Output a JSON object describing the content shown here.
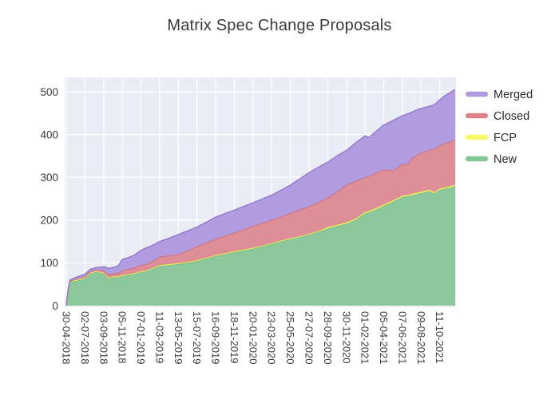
{
  "title": "Matrix Spec Change Proposals",
  "legend": {
    "position": "right",
    "items": [
      {
        "label": "Merged",
        "swatch": "#b09ae0"
      },
      {
        "label": "Closed",
        "swatch": "#e08189"
      },
      {
        "label": "FCP",
        "swatch": "#f8f866"
      },
      {
        "label": "New",
        "swatch": "#82c795"
      }
    ]
  },
  "chart_data": {
    "type": "area",
    "stacked": true,
    "title": "Matrix Spec Change Proposals",
    "xlabel": "",
    "ylabel": "",
    "grid": true,
    "plot_bg": "#e9ebf5",
    "grid_color": "#ffffff",
    "ylim": [
      0,
      537
    ],
    "yticks": [
      0,
      100,
      200,
      300,
      400,
      500
    ],
    "x_domain_days": [
      0,
      1312
    ],
    "xticks": [
      {
        "day": 0,
        "label": "30-04-2018"
      },
      {
        "day": 63,
        "label": "02-07-2018"
      },
      {
        "day": 126,
        "label": "03-09-2018"
      },
      {
        "day": 189,
        "label": "05-11-2018"
      },
      {
        "day": 252,
        "label": "07-01-2019"
      },
      {
        "day": 315,
        "label": "11-03-2019"
      },
      {
        "day": 378,
        "label": "13-05-2019"
      },
      {
        "day": 441,
        "label": "15-07-2019"
      },
      {
        "day": 504,
        "label": "16-09-2019"
      },
      {
        "day": 567,
        "label": "18-11-2019"
      },
      {
        "day": 630,
        "label": "20-01-2020"
      },
      {
        "day": 693,
        "label": "23-03-2020"
      },
      {
        "day": 756,
        "label": "25-05-2020"
      },
      {
        "day": 819,
        "label": "27-07-2020"
      },
      {
        "day": 882,
        "label": "28-09-2020"
      },
      {
        "day": 945,
        "label": "30-11-2020"
      },
      {
        "day": 1008,
        "label": "01-02-2021"
      },
      {
        "day": 1071,
        "label": "05-04-2021"
      },
      {
        "day": 1134,
        "label": "07-06-2021"
      },
      {
        "day": 1197,
        "label": "09-08-2021"
      },
      {
        "day": 1260,
        "label": "11-10-2021"
      }
    ],
    "series_bottom_to_top": [
      {
        "name": "New",
        "fill": "#8dc89d",
        "line": "#6fb586"
      },
      {
        "name": "FCP",
        "fill": "#f8f870",
        "line": "#ecec4d"
      },
      {
        "name": "Closed",
        "fill": "#dd8e97",
        "line": "#ca636f"
      },
      {
        "name": "Merged",
        "fill": "#b19cdf",
        "line": "#9278cb"
      }
    ],
    "columns": [
      "day",
      "new",
      "fcp",
      "closed",
      "merged"
    ],
    "samples": [
      [
        0,
        0,
        0,
        0,
        0
      ],
      [
        5,
        30,
        1,
        1,
        1
      ],
      [
        13,
        55,
        2,
        1,
        2
      ],
      [
        32,
        58,
        2,
        2,
        4
      ],
      [
        62,
        63,
        2,
        3,
        5
      ],
      [
        81,
        75,
        2,
        3,
        5
      ],
      [
        100,
        79,
        2,
        3,
        5
      ],
      [
        119,
        76,
        2,
        5,
        7
      ],
      [
        127,
        74,
        2,
        6,
        9
      ],
      [
        143,
        63,
        2,
        7,
        15
      ],
      [
        162,
        67,
        2,
        6,
        15
      ],
      [
        175,
        66,
        2,
        8,
        17
      ],
      [
        189,
        69,
        2,
        11,
        26
      ],
      [
        208,
        71,
        2,
        12,
        27
      ],
      [
        229,
        74,
        2,
        12,
        30
      ],
      [
        251,
        78,
        2,
        15,
        34
      ],
      [
        269,
        80,
        2,
        15,
        38
      ],
      [
        288,
        85,
        2,
        16,
        37
      ],
      [
        315,
        93,
        2,
        19,
        36
      ],
      [
        348,
        95,
        2,
        20,
        41
      ],
      [
        377,
        97,
        2,
        21,
        46
      ],
      [
        407,
        100,
        2,
        26,
        46
      ],
      [
        439,
        104,
        2,
        32,
        45
      ],
      [
        472,
        110,
        2,
        35,
        48
      ],
      [
        504,
        116,
        2,
        38,
        51
      ],
      [
        534,
        120,
        2,
        41,
        52
      ],
      [
        566,
        125,
        2,
        43,
        53
      ],
      [
        598,
        129,
        2,
        47,
        54
      ],
      [
        628,
        133,
        2,
        51,
        54
      ],
      [
        660,
        138,
        2,
        53,
        56
      ],
      [
        692,
        144,
        2,
        54,
        58
      ],
      [
        725,
        150,
        2,
        56,
        62
      ],
      [
        754,
        155,
        2,
        59,
        65
      ],
      [
        787,
        160,
        2,
        62,
        72
      ],
      [
        819,
        166,
        2,
        64,
        79
      ],
      [
        849,
        172,
        2,
        67,
        82
      ],
      [
        881,
        180,
        3,
        69,
        83
      ],
      [
        913,
        186,
        3,
        77,
        84
      ],
      [
        946,
        192,
        3,
        87,
        81
      ],
      [
        975,
        200,
        3,
        88,
        89
      ],
      [
        1008,
        216,
        3,
        81,
        97
      ],
      [
        1021,
        218,
        3,
        82,
        90
      ],
      [
        1043,
        224,
        3,
        83,
        96
      ],
      [
        1070,
        233,
        3,
        82,
        104
      ],
      [
        1102,
        243,
        3,
        70,
        117
      ],
      [
        1134,
        254,
        3,
        74,
        113
      ],
      [
        1151,
        256,
        3,
        71,
        118
      ],
      [
        1164,
        258,
        3,
        83,
        108
      ],
      [
        1196,
        263,
        3,
        91,
        104
      ],
      [
        1226,
        268,
        3,
        93,
        102
      ],
      [
        1242,
        262,
        3,
        101,
        104
      ],
      [
        1258,
        270,
        3,
        101,
        106
      ],
      [
        1280,
        274,
        3,
        103,
        112
      ],
      [
        1296,
        276,
        3,
        105,
        115
      ],
      [
        1312,
        280,
        3,
        105,
        117
      ]
    ]
  }
}
